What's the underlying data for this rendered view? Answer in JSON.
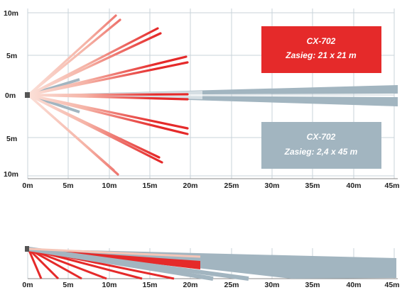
{
  "top_view": {
    "y_ticks": [
      "10m",
      "5m",
      "0m",
      "5m",
      "10m"
    ],
    "x_ticks": [
      "0m",
      "5m",
      "10m",
      "15m",
      "20m",
      "25m",
      "30m",
      "35m",
      "40m",
      "45m"
    ],
    "wide_pattern": {
      "color": "#e52a2a",
      "title": "CX-702",
      "subtitle": "Zasieg: 21 x 21 m"
    },
    "long_pattern": {
      "color": "#a2b5c0",
      "title": "CX-702",
      "subtitle": "Zasieg: 2,4 x 45 m"
    }
  },
  "side_view": {
    "x_ticks": [
      "0m",
      "5m",
      "10m",
      "15m",
      "20m",
      "25m",
      "30m",
      "35m",
      "40m",
      "45m"
    ]
  },
  "colors": {
    "grid": "#c8d3da",
    "red": "#e52a2a",
    "red_light": "#f5b3a6",
    "blue_grey": "#a2b5c0",
    "sensor": "#555555"
  }
}
